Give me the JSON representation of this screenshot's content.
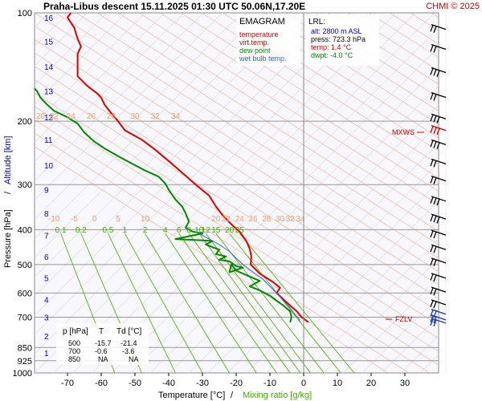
{
  "header": {
    "title": "Praha-Libus   descent   15.11.2025 01:30 UTC  50.06N,17.20E",
    "copyright": "CHMI © 2025"
  },
  "legend": {
    "title": "EMAGRAM",
    "items": [
      {
        "label": "temperature",
        "color": "#dd0000"
      },
      {
        "label": "virt.temp.",
        "color": "#dd0000"
      },
      {
        "label": "dew point",
        "color": "#008800"
      },
      {
        "label": "wet bulb temp.",
        "color": "#3366cc"
      }
    ]
  },
  "lrl": {
    "title": "LRL:",
    "alt": "alt: 2800 m ASL",
    "press": "press: 723.3 hPa",
    "temp": "temp: 1.4 °C",
    "dwpt": "dwpt: -4.0 °C"
  },
  "table": {
    "headers": [
      "p [hPa]",
      "T",
      "Td [°C]"
    ],
    "rows": [
      [
        "500",
        "-15.7",
        "-21.4"
      ],
      [
        "700",
        "-0.6",
        "-3.6"
      ],
      [
        "850",
        "NA",
        "NA"
      ]
    ]
  },
  "markers": {
    "mxws": "MXWS",
    "fzlv": "FZLV"
  },
  "colors": {
    "temperature": "#dd0000",
    "dewpoint": "#008800",
    "wetbulb": "#3366cc",
    "altitude": "#0000cc",
    "mixing": "#44aa00",
    "adiabat": "#f0b090",
    "isotherm": "#d8d8e8"
  },
  "chart_data": {
    "type": "line",
    "title": "Praha-Libus   descent   15.11.2025 01:30 UTC  50.06N,17.20E",
    "xlabel": "Temperature [°C]",
    "xlabel2": "Mixing ratio [g/kg]",
    "ylabel": "Pressure [hPa]",
    "ylabel2": "Altitude [km]",
    "xlim": [
      -80,
      40
    ],
    "ylim": [
      1000,
      100
    ],
    "y_scale": "log",
    "pressure_ticks": [
      100,
      200,
      300,
      400,
      500,
      600,
      700,
      850,
      925,
      1000
    ],
    "temperature_ticks": [
      -70,
      -60,
      -50,
      -40,
      -30,
      -20,
      -10,
      0,
      10,
      20,
      30
    ],
    "altitude_ticks": [
      {
        "label": "1",
        "p": 880
      },
      {
        "label": "2",
        "p": 790
      },
      {
        "label": "3",
        "p": 700
      },
      {
        "label": "4",
        "p": 625
      },
      {
        "label": "5",
        "p": 545
      },
      {
        "label": "6",
        "p": 475
      },
      {
        "label": "7",
        "p": 415
      },
      {
        "label": "8",
        "p": 360
      },
      {
        "label": "9",
        "p": 310
      },
      {
        "label": "10",
        "p": 265
      },
      {
        "label": "11",
        "p": 225
      },
      {
        "label": "12",
        "p": 195
      },
      {
        "label": "13",
        "p": 165
      },
      {
        "label": "14",
        "p": 141
      },
      {
        "label": "15",
        "p": 120
      },
      {
        "label": "16",
        "p": 103
      }
    ],
    "adiabat_labels_upper": {
      "p": 200,
      "items": [
        {
          "label": "20",
          "t": -78
        },
        {
          "label": "22",
          "t": -74
        },
        {
          "label": "24",
          "t": -69
        },
        {
          "label": "26",
          "t": -63
        },
        {
          "label": "28",
          "t": -57
        },
        {
          "label": "30",
          "t": -50
        },
        {
          "label": "32",
          "t": -44
        },
        {
          "label": "34",
          "t": -38
        }
      ]
    },
    "adiabat_labels_lower": {
      "p": 385,
      "items": [
        {
          "label": "-10",
          "t": -74
        },
        {
          "label": "-5",
          "t": -68
        },
        {
          "label": "0",
          "t": -62
        },
        {
          "label": "5",
          "t": -55
        },
        {
          "label": "10",
          "t": -47
        },
        {
          "label": "20",
          "t": -26
        },
        {
          "label": "22",
          "t": -23
        },
        {
          "label": "24",
          "t": -19
        },
        {
          "label": "26",
          "t": -15
        },
        {
          "label": "28",
          "t": -11
        },
        {
          "label": "30",
          "t": -7
        },
        {
          "label": "32",
          "t": -4
        },
        {
          "label": "34",
          "t": -1
        }
      ]
    },
    "mixing_ratio_lines": [
      {
        "label": "0.1",
        "t_top": -72,
        "t_bottom": -56
      },
      {
        "label": "0.2",
        "t_top": -66,
        "t_bottom": -48
      },
      {
        "label": "0.5",
        "t_top": -58,
        "t_bottom": -38
      },
      {
        "label": "1",
        "t_top": -53,
        "t_bottom": -30
      },
      {
        "label": "2",
        "t_top": -47,
        "t_bottom": -22
      },
      {
        "label": "4",
        "t_top": -41,
        "t_bottom": -14
      },
      {
        "label": "6",
        "t_top": -37,
        "t_bottom": -8
      },
      {
        "label": "8",
        "t_top": -34,
        "t_bottom": -4
      },
      {
        "label": "10",
        "t_top": -31,
        "t_bottom": -1
      },
      {
        "label": "12",
        "t_top": -29,
        "t_bottom": 2
      },
      {
        "label": "15",
        "t_top": -26,
        "t_bottom": 6
      },
      {
        "label": "20",
        "t_top": -22,
        "t_bottom": 11
      },
      {
        "label": "25",
        "t_top": -19,
        "t_bottom": 15
      }
    ],
    "series": [
      {
        "name": "temperature",
        "color": "#dd0000",
        "points": [
          [
            -69,
            100
          ],
          [
            -70,
            103
          ],
          [
            -68,
            110
          ],
          [
            -67,
            118
          ],
          [
            -66,
            124
          ],
          [
            -67,
            130
          ],
          [
            -67,
            137
          ],
          [
            -67,
            141
          ],
          [
            -67,
            150
          ],
          [
            -64,
            160
          ],
          [
            -61,
            168
          ],
          [
            -60,
            172
          ],
          [
            -59,
            180
          ],
          [
            -57,
            190
          ],
          [
            -55,
            200
          ],
          [
            -53,
            212
          ],
          [
            -48,
            225
          ],
          [
            -44,
            240
          ],
          [
            -40,
            258
          ],
          [
            -36,
            278
          ],
          [
            -32,
            300
          ],
          [
            -28,
            322
          ],
          [
            -26,
            345
          ],
          [
            -24,
            365
          ],
          [
            -21,
            390
          ],
          [
            -19,
            405
          ],
          [
            -17,
            430
          ],
          [
            -16,
            452
          ],
          [
            -15.5,
            475
          ],
          [
            -15.7,
            500
          ],
          [
            -13,
            530
          ],
          [
            -9,
            560
          ],
          [
            -7,
            580
          ],
          [
            -8,
            600
          ],
          [
            -6,
            625
          ],
          [
            -4,
            650
          ],
          [
            -2,
            675
          ],
          [
            -0.6,
            700
          ],
          [
            1.4,
            723
          ]
        ]
      },
      {
        "name": "dew point",
        "color": "#008800",
        "points": [
          [
            -83,
            150
          ],
          [
            -81,
            158
          ],
          [
            -79,
            165
          ],
          [
            -78,
            172
          ],
          [
            -76,
            180
          ],
          [
            -74,
            187
          ],
          [
            -70,
            195
          ],
          [
            -67,
            203
          ],
          [
            -65,
            215
          ],
          [
            -62,
            228
          ],
          [
            -59,
            238
          ],
          [
            -55,
            250
          ],
          [
            -51,
            262
          ],
          [
            -47,
            274
          ],
          [
            -43,
            285
          ],
          [
            -41,
            298
          ],
          [
            -40,
            310
          ],
          [
            -38,
            330
          ],
          [
            -36,
            345
          ],
          [
            -35,
            360
          ],
          [
            -34,
            380
          ],
          [
            -35,
            395
          ],
          [
            -33,
            405
          ],
          [
            -30,
            410
          ],
          [
            -38,
            425
          ],
          [
            -31,
            428
          ],
          [
            -27,
            430
          ],
          [
            -29,
            440
          ],
          [
            -25,
            455
          ],
          [
            -26,
            468
          ],
          [
            -23,
            475
          ],
          [
            -25,
            485
          ],
          [
            -22,
            490
          ],
          [
            -20,
            505
          ],
          [
            -18,
            510
          ],
          [
            -22,
            525
          ],
          [
            -21.4,
            500
          ],
          [
            -20,
            520
          ],
          [
            -16,
            540
          ],
          [
            -13,
            555
          ],
          [
            -16,
            575
          ],
          [
            -13,
            590
          ],
          [
            -10,
            610
          ],
          [
            -8,
            630
          ],
          [
            -6,
            650
          ],
          [
            -4,
            675
          ],
          [
            -3.6,
            700
          ],
          [
            -4,
            723
          ]
        ]
      },
      {
        "name": "wet bulb temp.",
        "color": "#3366cc",
        "points": [
          [
            -32,
            405
          ],
          [
            -29,
            420
          ],
          [
            -25,
            440
          ],
          [
            -22,
            460
          ],
          [
            -20,
            480
          ],
          [
            -18,
            500
          ],
          [
            -15,
            525
          ],
          [
            -12,
            550
          ],
          [
            -10,
            575
          ],
          [
            -8,
            600
          ],
          [
            -6,
            630
          ],
          [
            -4,
            660
          ],
          [
            -2.5,
            690
          ],
          [
            -1.5,
            705
          ],
          [
            -1,
            723
          ]
        ]
      }
    ],
    "wind_barbs": [
      {
        "p": 110,
        "barbs": 2
      },
      {
        "p": 125,
        "barbs": 2
      },
      {
        "p": 145,
        "barbs": 3
      },
      {
        "p": 170,
        "barbs": 2
      },
      {
        "p": 195,
        "barbs": 3
      },
      {
        "p": 210,
        "barbs": 3
      },
      {
        "p": 230,
        "barbs": 3
      },
      {
        "p": 260,
        "barbs": 2
      },
      {
        "p": 290,
        "barbs": 2
      },
      {
        "p": 330,
        "barbs": 3
      },
      {
        "p": 370,
        "barbs": 3
      },
      {
        "p": 410,
        "barbs": 2
      },
      {
        "p": 450,
        "barbs": 2
      },
      {
        "p": 490,
        "barbs": 2
      },
      {
        "p": 540,
        "barbs": 2
      },
      {
        "p": 590,
        "barbs": 2
      },
      {
        "p": 640,
        "barbs": 2
      },
      {
        "p": 680,
        "barbs": 2
      },
      {
        "p": 705,
        "barbs": 2
      },
      {
        "p": 720,
        "barbs": 2
      }
    ],
    "mxws_p": 210,
    "fzlv_p": 705,
    "grid": true
  }
}
